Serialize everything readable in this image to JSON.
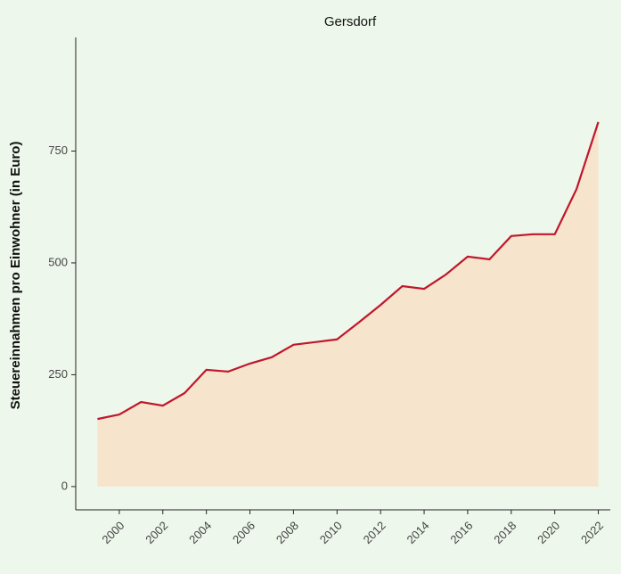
{
  "chart_data": {
    "type": "line",
    "title": "Gersdorf",
    "y_label": "Steuereinnahmen pro Einwohner (in Euro)",
    "x": [
      1999,
      2000,
      2001,
      2002,
      2003,
      2004,
      2005,
      2006,
      2007,
      2008,
      2009,
      2010,
      2011,
      2012,
      2013,
      2014,
      2015,
      2016,
      2017,
      2018,
      2019,
      2020,
      2021,
      2022
    ],
    "series": [
      {
        "name": "Gersdorf",
        "color": "#c0172c",
        "fill": "#f7e4cc",
        "values": [
          151,
          161,
          189,
          181,
          209,
          261,
          257,
          275,
          289,
          317,
          323,
          329,
          367,
          406,
          448,
          442,
          474,
          514,
          508,
          560,
          564,
          564,
          665,
          815
        ]
      }
    ],
    "xlim": [
      1998,
      2022.55
    ],
    "xticks": [
      2000,
      2002,
      2004,
      2006,
      2008,
      2010,
      2012,
      2014,
      2016,
      2018,
      2020,
      2022
    ],
    "ylim": [
      -52,
      1004
    ],
    "yticks": [
      0,
      250,
      500,
      750
    ],
    "grid": false
  }
}
